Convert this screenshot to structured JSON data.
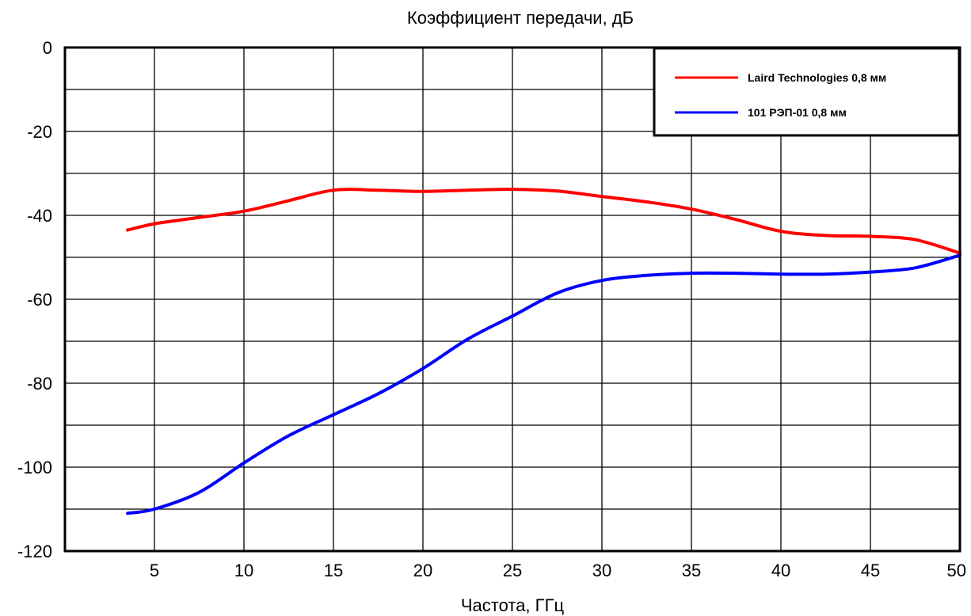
{
  "chart_data": {
    "type": "line",
    "title": "Коэффициент передачи, дБ",
    "xlabel": "Частота,  ГГц",
    "ylabel": "",
    "xlim": [
      0,
      50
    ],
    "ylim": [
      -120,
      0
    ],
    "x_ticks": [
      5,
      10,
      15,
      20,
      25,
      30,
      35,
      40,
      45,
      50
    ],
    "y_ticks": [
      0,
      -20,
      -40,
      -60,
      -80,
      -100,
      -120
    ],
    "grid": true,
    "legend_position": "top-right",
    "series": [
      {
        "name": "Laird Technologies 0,8 мм",
        "color": "#ff0000",
        "x": [
          3.5,
          5,
          7.5,
          10,
          12.5,
          15,
          17.5,
          20,
          22.5,
          25,
          27.5,
          30,
          32.5,
          35,
          37.5,
          40,
          42.5,
          45,
          47.5,
          50
        ],
        "y": [
          -43.5,
          -42,
          -40.5,
          -39,
          -36.5,
          -34,
          -34,
          -34.3,
          -34,
          -33.8,
          -34.2,
          -35.5,
          -36.8,
          -38.5,
          -41,
          -43.8,
          -44.8,
          -45,
          -45.8,
          -49
        ]
      },
      {
        "name": "101 РЭП-01 0,8 мм",
        "color": "#0000ff",
        "x": [
          3.5,
          5,
          7.5,
          10,
          12.5,
          15,
          17.5,
          20,
          22.5,
          25,
          27.5,
          30,
          32.5,
          35,
          37.5,
          40,
          42.5,
          45,
          47.5,
          50
        ],
        "y": [
          -111,
          -110,
          -106,
          -99,
          -92.5,
          -87.5,
          -82.5,
          -76.5,
          -69.5,
          -64,
          -58.5,
          -55.5,
          -54.3,
          -53.8,
          -53.8,
          -54,
          -54,
          -53.5,
          -52.5,
          -49.5
        ]
      }
    ]
  }
}
